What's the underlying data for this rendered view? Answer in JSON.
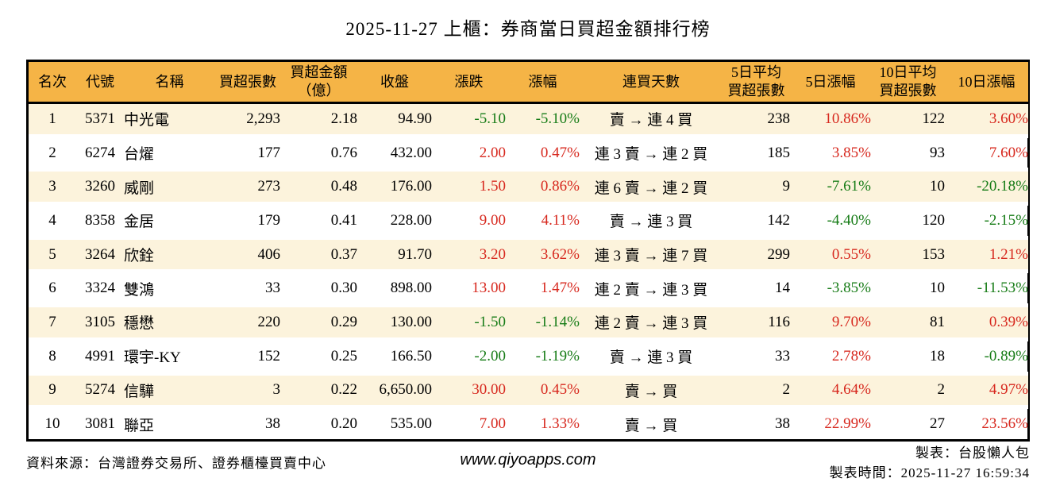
{
  "title": "2025-11-27 上櫃：券商當日買超金額排行榜",
  "colors": {
    "header_bg": "#F5B446",
    "stripe_bg": "#FCF3DC",
    "up_red": "#D7281E",
    "down_green": "#177C17",
    "border": "#000000"
  },
  "chart_data": {
    "type": "table",
    "title": "2025-11-27 上櫃：券商當日買超金額排行榜",
    "columns": [
      {
        "key": "rank",
        "label": "名次"
      },
      {
        "key": "code",
        "label": "代號"
      },
      {
        "key": "name",
        "label": "名稱"
      },
      {
        "key": "volume",
        "label": "買超張數"
      },
      {
        "key": "amount",
        "label_lines": [
          "買超金額",
          "（億）"
        ]
      },
      {
        "key": "close",
        "label": "收盤"
      },
      {
        "key": "change",
        "label": "漲跌"
      },
      {
        "key": "change_pct",
        "label": "漲幅"
      },
      {
        "key": "streak",
        "label": "連買天數"
      },
      {
        "key": "avg5",
        "label_lines": [
          "5日平均",
          "買超張數"
        ]
      },
      {
        "key": "pct5",
        "label": "5日漲幅"
      },
      {
        "key": "avg10",
        "label_lines": [
          "10日平均",
          "買超張數"
        ]
      },
      {
        "key": "pct10",
        "label": "10日漲幅"
      }
    ],
    "rows": [
      {
        "rank": "1",
        "code": "5371",
        "name": "中光電",
        "volume": "2,293",
        "amount": "2.18",
        "close": "94.90",
        "change": "-5.10",
        "change_dir": "down",
        "change_pct": "-5.10%",
        "change_pct_dir": "down",
        "streak": "賣 → 連 4 買",
        "avg5": "238",
        "pct5": "10.86%",
        "pct5_dir": "up",
        "avg10": "122",
        "pct10": "3.60%",
        "pct10_dir": "up"
      },
      {
        "rank": "2",
        "code": "6274",
        "name": "台燿",
        "volume": "177",
        "amount": "0.76",
        "close": "432.00",
        "change": "2.00",
        "change_dir": "up",
        "change_pct": "0.47%",
        "change_pct_dir": "up",
        "streak": "連 3 賣 → 連 2 買",
        "avg5": "185",
        "pct5": "3.85%",
        "pct5_dir": "up",
        "avg10": "93",
        "pct10": "7.60%",
        "pct10_dir": "up"
      },
      {
        "rank": "3",
        "code": "3260",
        "name": "威剛",
        "volume": "273",
        "amount": "0.48",
        "close": "176.00",
        "change": "1.50",
        "change_dir": "up",
        "change_pct": "0.86%",
        "change_pct_dir": "up",
        "streak": "連 6 賣 → 連 2 買",
        "avg5": "9",
        "pct5": "-7.61%",
        "pct5_dir": "down",
        "avg10": "10",
        "pct10": "-20.18%",
        "pct10_dir": "down"
      },
      {
        "rank": "4",
        "code": "8358",
        "name": "金居",
        "volume": "179",
        "amount": "0.41",
        "close": "228.00",
        "change": "9.00",
        "change_dir": "up",
        "change_pct": "4.11%",
        "change_pct_dir": "up",
        "streak": "賣 → 連 3 買",
        "avg5": "142",
        "pct5": "-4.40%",
        "pct5_dir": "down",
        "avg10": "120",
        "pct10": "-2.15%",
        "pct10_dir": "down"
      },
      {
        "rank": "5",
        "code": "3264",
        "name": "欣銓",
        "volume": "406",
        "amount": "0.37",
        "close": "91.70",
        "change": "3.20",
        "change_dir": "up",
        "change_pct": "3.62%",
        "change_pct_dir": "up",
        "streak": "連 3 賣 → 連 7 買",
        "avg5": "299",
        "pct5": "0.55%",
        "pct5_dir": "up",
        "avg10": "153",
        "pct10": "1.21%",
        "pct10_dir": "up"
      },
      {
        "rank": "6",
        "code": "3324",
        "name": "雙鴻",
        "volume": "33",
        "amount": "0.30",
        "close": "898.00",
        "change": "13.00",
        "change_dir": "up",
        "change_pct": "1.47%",
        "change_pct_dir": "up",
        "streak": "連 2 賣 → 連 3 買",
        "avg5": "14",
        "pct5": "-3.85%",
        "pct5_dir": "down",
        "avg10": "10",
        "pct10": "-11.53%",
        "pct10_dir": "down"
      },
      {
        "rank": "7",
        "code": "3105",
        "name": "穩懋",
        "volume": "220",
        "amount": "0.29",
        "close": "130.00",
        "change": "-1.50",
        "change_dir": "down",
        "change_pct": "-1.14%",
        "change_pct_dir": "down",
        "streak": "連 2 賣 → 連 3 買",
        "avg5": "116",
        "pct5": "9.70%",
        "pct5_dir": "up",
        "avg10": "81",
        "pct10": "0.39%",
        "pct10_dir": "up"
      },
      {
        "rank": "8",
        "code": "4991",
        "name": "環宇-KY",
        "volume": "152",
        "amount": "0.25",
        "close": "166.50",
        "change": "-2.00",
        "change_dir": "down",
        "change_pct": "-1.19%",
        "change_pct_dir": "down",
        "streak": "賣 → 連 3 買",
        "avg5": "33",
        "pct5": "2.78%",
        "pct5_dir": "up",
        "avg10": "18",
        "pct10": "-0.89%",
        "pct10_dir": "down"
      },
      {
        "rank": "9",
        "code": "5274",
        "name": "信驊",
        "volume": "3",
        "amount": "0.22",
        "close": "6,650.00",
        "change": "30.00",
        "change_dir": "up",
        "change_pct": "0.45%",
        "change_pct_dir": "up",
        "streak": "賣 → 買",
        "avg5": "2",
        "pct5": "4.64%",
        "pct5_dir": "up",
        "avg10": "2",
        "pct10": "4.97%",
        "pct10_dir": "up"
      },
      {
        "rank": "10",
        "code": "3081",
        "name": "聯亞",
        "volume": "38",
        "amount": "0.20",
        "close": "535.00",
        "change": "7.00",
        "change_dir": "up",
        "change_pct": "1.33%",
        "change_pct_dir": "up",
        "streak": "賣 → 買",
        "avg5": "38",
        "pct5": "22.99%",
        "pct5_dir": "up",
        "avg10": "27",
        "pct10": "23.56%",
        "pct10_dir": "up"
      }
    ]
  },
  "footer": {
    "source": "資料來源：台灣證券交易所、證券櫃檯買賣中心",
    "website": "www.qiyoapps.com",
    "maker": "製表：台股懶人包",
    "timestamp": "製表時間：2025-11-27 16:59:34"
  }
}
